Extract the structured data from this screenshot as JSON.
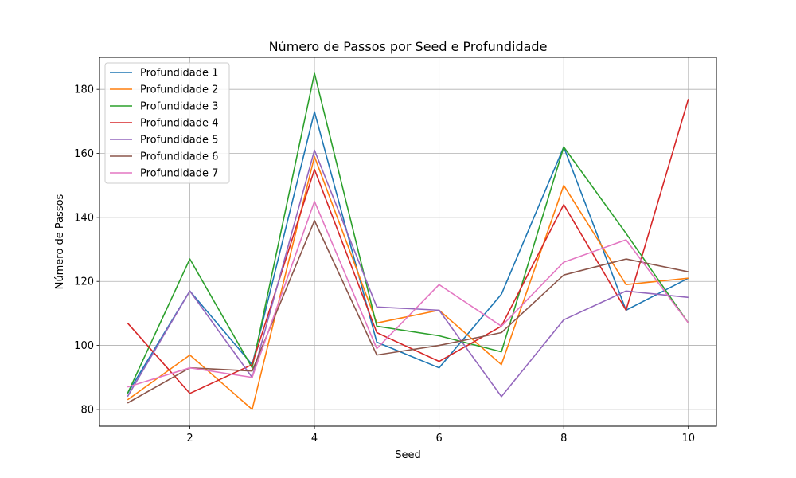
{
  "chart_data": {
    "type": "line",
    "title": "Número de Passos por Seed e Profundidade",
    "xlabel": "Seed",
    "ylabel": "Número de Passos",
    "x": [
      1,
      2,
      3,
      4,
      5,
      6,
      7,
      8,
      9,
      10
    ],
    "xlim": [
      0.55,
      10.45
    ],
    "ylim": [
      74.75,
      190
    ],
    "xticks": [
      2,
      4,
      6,
      8,
      10
    ],
    "yticks": [
      80,
      100,
      120,
      140,
      160,
      180
    ],
    "grid": true,
    "legend_position": "top-left",
    "series": [
      {
        "name": "Profundidade 1",
        "color": "#1f77b4",
        "values": [
          85,
          117,
          94,
          173,
          101,
          93,
          116,
          162,
          111,
          121
        ]
      },
      {
        "name": "Profundidade 2",
        "color": "#ff7f0e",
        "values": [
          83,
          97,
          80,
          159,
          107,
          111,
          94,
          150,
          119,
          121
        ]
      },
      {
        "name": "Profundidade 3",
        "color": "#2ca02c",
        "values": [
          85,
          127,
          93,
          185,
          106,
          103,
          98,
          162,
          135,
          107
        ]
      },
      {
        "name": "Profundidade 4",
        "color": "#d62728",
        "values": [
          107,
          85,
          94,
          155,
          104,
          95,
          106,
          144,
          111,
          177
        ]
      },
      {
        "name": "Profundidade 5",
        "color": "#9467bd",
        "values": [
          84,
          117,
          90,
          161,
          112,
          111,
          84,
          108,
          117,
          115
        ]
      },
      {
        "name": "Profundidade 6",
        "color": "#8c564b",
        "values": [
          82,
          93,
          92,
          139,
          97,
          100,
          104,
          122,
          127,
          123
        ]
      },
      {
        "name": "Profundidade 7",
        "color": "#e377c2",
        "values": [
          87,
          93,
          90,
          145,
          99,
          119,
          106,
          126,
          133,
          107
        ]
      }
    ]
  }
}
